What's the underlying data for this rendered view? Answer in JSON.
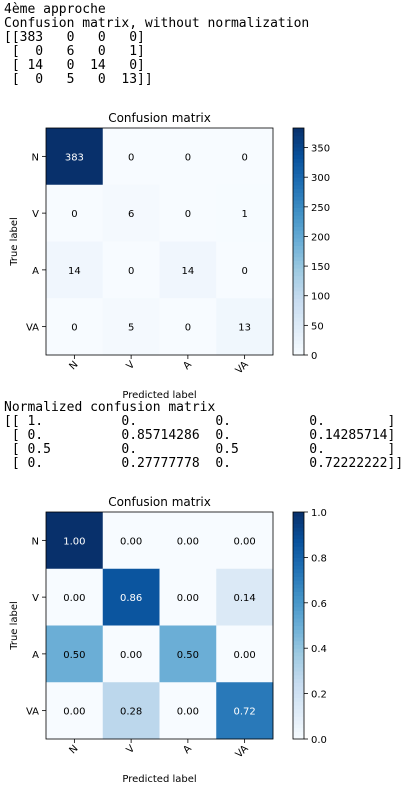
{
  "output": {
    "approach_label": "4ème approche",
    "raw_heading": "Confusion matrix, without normalization",
    "raw_text_lines": [
      "[[383   0   0   0]",
      " [  0   6   0   1]",
      " [ 14   0  14   0]",
      " [  0   5   0  13]]"
    ],
    "normalized_heading": "Normalized confusion matrix",
    "normalized_text_lines": [
      "[[ 1.          0.          0.          0.        ]",
      " [ 0.          0.85714286  0.          0.14285714]",
      " [ 0.5         0.          0.5         0.        ]",
      " [ 0.          0.27777778  0.          0.72222222]]"
    ]
  },
  "chart_data": [
    {
      "type": "heatmap",
      "title": "Confusion matrix",
      "xlabel": "Predicted label",
      "ylabel": "True label",
      "x_categories": [
        "N",
        "V",
        "A",
        "VA"
      ],
      "y_categories": [
        "N",
        "V",
        "A",
        "VA"
      ],
      "values": [
        [
          383,
          0,
          0,
          0
        ],
        [
          0,
          6,
          0,
          1
        ],
        [
          14,
          0,
          14,
          0
        ],
        [
          0,
          5,
          0,
          13
        ]
      ],
      "cell_labels": [
        [
          "383",
          "0",
          "0",
          "0"
        ],
        [
          "0",
          "6",
          "0",
          "1"
        ],
        [
          "14",
          "0",
          "14",
          "0"
        ],
        [
          "0",
          "5",
          "0",
          "13"
        ]
      ],
      "colormap": "Blues",
      "color_range": [
        0,
        383
      ],
      "colorbar_ticks": [
        0,
        50,
        100,
        150,
        200,
        250,
        300,
        350
      ],
      "colorbar_tick_labels": [
        "0",
        "50",
        "100",
        "150",
        "200",
        "250",
        "300",
        "350"
      ],
      "grid": false
    },
    {
      "type": "heatmap",
      "title": "Confusion matrix",
      "xlabel": "Predicted label",
      "ylabel": "True label",
      "x_categories": [
        "N",
        "V",
        "A",
        "VA"
      ],
      "y_categories": [
        "N",
        "V",
        "A",
        "VA"
      ],
      "values": [
        [
          1.0,
          0.0,
          0.0,
          0.0
        ],
        [
          0.0,
          0.86,
          0.0,
          0.14
        ],
        [
          0.5,
          0.0,
          0.5,
          0.0
        ],
        [
          0.0,
          0.28,
          0.0,
          0.72
        ]
      ],
      "cell_labels": [
        [
          "1.00",
          "0.00",
          "0.00",
          "0.00"
        ],
        [
          "0.00",
          "0.86",
          "0.00",
          "0.14"
        ],
        [
          "0.50",
          "0.00",
          "0.50",
          "0.00"
        ],
        [
          "0.00",
          "0.28",
          "0.00",
          "0.72"
        ]
      ],
      "colormap": "Blues",
      "color_range": [
        0,
        1
      ],
      "colorbar_ticks": [
        0,
        0.2,
        0.4,
        0.6,
        0.8,
        1.0
      ],
      "colorbar_tick_labels": [
        "0.0",
        "0.2",
        "0.4",
        "0.6",
        "0.8",
        "1.0"
      ],
      "grid": false
    }
  ]
}
